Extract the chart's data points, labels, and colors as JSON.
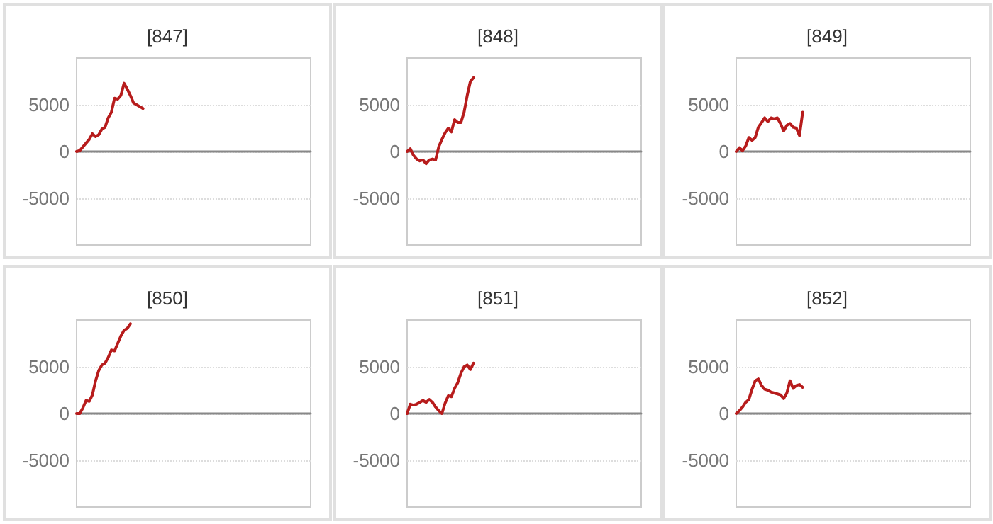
{
  "chart_data": [
    {
      "type": "line",
      "title": "[847]",
      "categories": [
        null,
        null,
        null,
        null,
        null,
        null,
        null,
        null,
        null,
        null,
        null,
        null,
        null,
        null,
        null,
        null,
        null,
        null,
        null,
        null,
        null,
        null,
        null,
        null,
        null,
        null,
        null,
        null,
        null,
        null,
        null,
        null,
        null,
        null,
        null,
        null,
        null,
        null,
        null,
        null,
        null,
        null,
        null,
        null,
        null,
        null,
        null,
        null,
        null,
        null,
        null,
        null,
        null,
        null,
        null,
        null,
        null,
        null,
        null,
        null,
        null,
        null,
        null,
        null,
        null,
        null,
        null,
        null,
        null,
        null,
        null,
        null,
        null,
        null,
        null
      ],
      "series": [
        {
          "color": "#b71c1c",
          "values": [
            0,
            100,
            500,
            900,
            1300,
            1900,
            1600,
            1800,
            2400,
            2600,
            3600,
            4200,
            5700,
            5600,
            6000,
            7300,
            6700,
            6000,
            5200,
            5000,
            4800,
            4600,
            null,
            null,
            null,
            null,
            null,
            null,
            null,
            null,
            null,
            null,
            null,
            null,
            null,
            null,
            null,
            null,
            null,
            null,
            null,
            null,
            null,
            null,
            null,
            null,
            null,
            null,
            null,
            null,
            null,
            null,
            null,
            null,
            null,
            null,
            null,
            null,
            null,
            null,
            null,
            null,
            null,
            null,
            null,
            null,
            null,
            null,
            null,
            null,
            null,
            null,
            null,
            null,
            null
          ]
        }
      ],
      "ylim": [
        -10000,
        10000
      ],
      "yticks": [
        -5000,
        0,
        5000
      ],
      "grid": "y",
      "tick_labels": "y",
      "line_style": "solid"
    },
    {
      "type": "line",
      "title": "[848]",
      "categories": [
        null,
        null,
        null,
        null,
        null,
        null,
        null,
        null,
        null,
        null,
        null,
        null,
        null,
        null,
        null,
        null,
        null,
        null,
        null,
        null,
        null,
        null,
        null,
        null,
        null,
        null,
        null,
        null,
        null,
        null,
        null,
        null,
        null,
        null,
        null,
        null,
        null,
        null,
        null,
        null,
        null,
        null,
        null,
        null,
        null,
        null,
        null,
        null,
        null,
        null,
        null,
        null,
        null,
        null,
        null,
        null,
        null,
        null,
        null,
        null,
        null,
        null,
        null,
        null,
        null,
        null,
        null,
        null,
        null,
        null,
        null,
        null,
        null,
        null,
        null
      ],
      "series": [
        {
          "color": "#b71c1c",
          "values": [
            0,
            300,
            -400,
            -800,
            -1000,
            -900,
            -1300,
            -900,
            -800,
            -900,
            500,
            1300,
            2000,
            2500,
            2100,
            3400,
            3100,
            3100,
            4200,
            6000,
            7500,
            7900,
            null,
            null,
            null,
            null,
            null,
            null,
            null,
            null,
            null,
            null,
            null,
            null,
            null,
            null,
            null,
            null,
            null,
            null,
            null,
            null,
            null,
            null,
            null,
            null,
            null,
            null,
            null,
            null,
            null,
            null,
            null,
            null,
            null,
            null,
            null,
            null,
            null,
            null,
            null,
            null,
            null,
            null,
            null,
            null,
            null,
            null,
            null,
            null,
            null,
            null,
            null,
            null,
            null
          ]
        }
      ],
      "ylim": [
        -10000,
        10000
      ],
      "yticks": [
        -5000,
        0,
        5000
      ],
      "grid": "y",
      "tick_labels": "y",
      "line_style": "solid"
    },
    {
      "type": "line",
      "title": "[849]",
      "categories": [
        null,
        null,
        null,
        null,
        null,
        null,
        null,
        null,
        null,
        null,
        null,
        null,
        null,
        null,
        null,
        null,
        null,
        null,
        null,
        null,
        null,
        null,
        null,
        null,
        null,
        null,
        null,
        null,
        null,
        null,
        null,
        null,
        null,
        null,
        null,
        null,
        null,
        null,
        null,
        null,
        null,
        null,
        null,
        null,
        null,
        null,
        null,
        null,
        null,
        null,
        null,
        null,
        null,
        null,
        null,
        null,
        null,
        null,
        null,
        null,
        null,
        null,
        null,
        null,
        null,
        null,
        null,
        null,
        null,
        null,
        null,
        null,
        null,
        null,
        null
      ],
      "series": [
        {
          "color": "#b71c1c",
          "values": [
            0,
            400,
            100,
            600,
            1500,
            1200,
            1500,
            2600,
            3100,
            3600,
            3200,
            3600,
            3500,
            3600,
            3000,
            2200,
            2800,
            3000,
            2600,
            2500,
            1700,
            4200,
            null,
            null,
            null,
            null,
            null,
            null,
            null,
            null,
            null,
            null,
            null,
            null,
            null,
            null,
            null,
            null,
            null,
            null,
            null,
            null,
            null,
            null,
            null,
            null,
            null,
            null,
            null,
            null,
            null,
            null,
            null,
            null,
            null,
            null,
            null,
            null,
            null,
            null,
            null,
            null,
            null,
            null,
            null,
            null,
            null,
            null,
            null,
            null,
            null,
            null,
            null,
            null,
            null
          ]
        }
      ],
      "ylim": [
        -10000,
        10000
      ],
      "yticks": [
        -5000,
        0,
        5000
      ],
      "grid": "y",
      "tick_labels": "y",
      "line_style": "solid"
    },
    {
      "type": "line",
      "title": "[850]",
      "categories": [
        null,
        null,
        null,
        null,
        null,
        null,
        null,
        null,
        null,
        null,
        null,
        null,
        null,
        null,
        null,
        null,
        null,
        null,
        null,
        null,
        null,
        null,
        null,
        null,
        null,
        null,
        null,
        null,
        null,
        null,
        null,
        null,
        null,
        null,
        null,
        null,
        null,
        null,
        null,
        null,
        null,
        null,
        null,
        null,
        null,
        null,
        null,
        null,
        null,
        null,
        null,
        null,
        null,
        null,
        null,
        null,
        null,
        null,
        null,
        null,
        null,
        null,
        null,
        null,
        null,
        null,
        null,
        null,
        null,
        null,
        null,
        null,
        null,
        null,
        null
      ],
      "series": [
        {
          "color": "#b71c1c",
          "values": [
            0,
            0,
            600,
            1400,
            1300,
            2000,
            3500,
            4600,
            5200,
            5400,
            6000,
            6800,
            6700,
            7500,
            8300,
            8900,
            9100,
            9600,
            null,
            null,
            null,
            null,
            null,
            null,
            null,
            null,
            null,
            null,
            null,
            null,
            null,
            null,
            null,
            null,
            null,
            null,
            null,
            null,
            null,
            null,
            null,
            null,
            null,
            null,
            null,
            null,
            null,
            null,
            null,
            null,
            null,
            null,
            null,
            null,
            null,
            null,
            null,
            null,
            null,
            null,
            null,
            null,
            null,
            null,
            null,
            null,
            null,
            null,
            null,
            null,
            null,
            null,
            null,
            null,
            null
          ]
        }
      ],
      "ylim": [
        -10000,
        10000
      ],
      "yticks": [
        -5000,
        0,
        5000
      ],
      "grid": "y",
      "tick_labels": "y",
      "line_style": "solid"
    },
    {
      "type": "line",
      "title": "[851]",
      "categories": [
        null,
        null,
        null,
        null,
        null,
        null,
        null,
        null,
        null,
        null,
        null,
        null,
        null,
        null,
        null,
        null,
        null,
        null,
        null,
        null,
        null,
        null,
        null,
        null,
        null,
        null,
        null,
        null,
        null,
        null,
        null,
        null,
        null,
        null,
        null,
        null,
        null,
        null,
        null,
        null,
        null,
        null,
        null,
        null,
        null,
        null,
        null,
        null,
        null,
        null,
        null,
        null,
        null,
        null,
        null,
        null,
        null,
        null,
        null,
        null,
        null,
        null,
        null,
        null,
        null,
        null,
        null,
        null,
        null,
        null,
        null,
        null,
        null,
        null,
        null
      ],
      "series": [
        {
          "color": "#b71c1c",
          "values": [
            0,
            1000,
            900,
            1000,
            1200,
            1400,
            1200,
            1500,
            1200,
            700,
            300,
            0,
            1100,
            1900,
            1800,
            2700,
            3300,
            4300,
            5000,
            5200,
            4700,
            5400,
            null,
            null,
            null,
            null,
            null,
            null,
            null,
            null,
            null,
            null,
            null,
            null,
            null,
            null,
            null,
            null,
            null,
            null,
            null,
            null,
            null,
            null,
            null,
            null,
            null,
            null,
            null,
            null,
            null,
            null,
            null,
            null,
            null,
            null,
            null,
            null,
            null,
            null,
            null,
            null,
            null,
            null,
            null,
            null,
            null,
            null,
            null,
            null,
            null,
            null,
            null,
            null,
            null
          ]
        }
      ],
      "ylim": [
        -10000,
        10000
      ],
      "yticks": [
        -5000,
        0,
        5000
      ],
      "grid": "y",
      "tick_labels": "y",
      "line_style": "solid"
    },
    {
      "type": "line",
      "title": "[852]",
      "categories": [
        null,
        null,
        null,
        null,
        null,
        null,
        null,
        null,
        null,
        null,
        null,
        null,
        null,
        null,
        null,
        null,
        null,
        null,
        null,
        null,
        null,
        null,
        null,
        null,
        null,
        null,
        null,
        null,
        null,
        null,
        null,
        null,
        null,
        null,
        null,
        null,
        null,
        null,
        null,
        null,
        null,
        null,
        null,
        null,
        null,
        null,
        null,
        null,
        null,
        null,
        null,
        null,
        null,
        null,
        null,
        null,
        null,
        null,
        null,
        null,
        null,
        null,
        null,
        null,
        null,
        null,
        null,
        null,
        null,
        null,
        null,
        null,
        null,
        null,
        null
      ],
      "series": [
        {
          "color": "#b71c1c",
          "values": [
            0,
            300,
            700,
            1200,
            1500,
            2600,
            3500,
            3700,
            3000,
            2600,
            2500,
            2300,
            2200,
            2100,
            2000,
            1600,
            2200,
            3500,
            2700,
            3000,
            3100,
            2800,
            null,
            null,
            null,
            null,
            null,
            null,
            null,
            null,
            null,
            null,
            null,
            null,
            null,
            null,
            null,
            null,
            null,
            null,
            null,
            null,
            null,
            null,
            null,
            null,
            null,
            null,
            null,
            null,
            null,
            null,
            null,
            null,
            null,
            null,
            null,
            null,
            null,
            null,
            null,
            null,
            null,
            null,
            null,
            null,
            null,
            null,
            null,
            null,
            null,
            null,
            null,
            null,
            null
          ]
        }
      ],
      "ylim": [
        -10000,
        10000
      ],
      "yticks": [
        -5000,
        0,
        5000
      ],
      "grid": "y",
      "tick_labels": "y",
      "line_style": "solid"
    }
  ]
}
